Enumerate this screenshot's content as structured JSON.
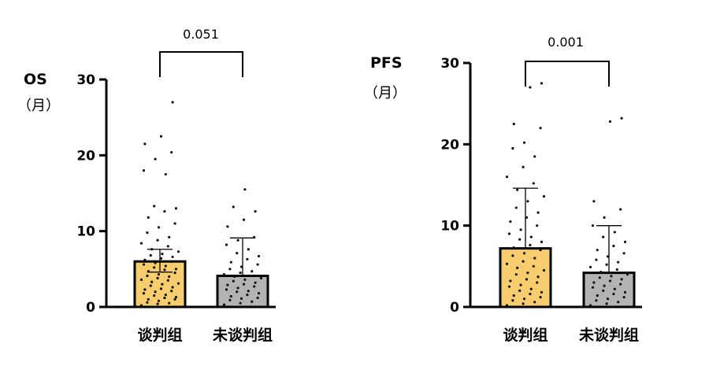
{
  "colors": {
    "group1": "#F8CD6E",
    "group2": "#B3B3B3"
  },
  "chart_data": [
    {
      "type": "bar",
      "title": "",
      "ylabel": "OS",
      "yunit": "（月）",
      "categories": [
        "谈判组",
        "未谈判组"
      ],
      "means": [
        6.0,
        4.1
      ],
      "error_low": [
        4.6,
        4.1
      ],
      "error_high": [
        7.6,
        9.1
      ],
      "ylim": [
        0,
        30
      ],
      "yticks": [
        0,
        10,
        20,
        30
      ],
      "p_value": "0.051",
      "points": [
        [
          0.2,
          0.4,
          0.5,
          0.6,
          0.8,
          1.0,
          1.0,
          1.2,
          1.3,
          1.5,
          1.6,
          1.8,
          2.0,
          2.1,
          2.3,
          2.4,
          2.6,
          2.8,
          3.0,
          3.1,
          3.3,
          3.5,
          3.6,
          3.8,
          4.0,
          4.1,
          4.3,
          4.5,
          4.7,
          4.9,
          5.0,
          5.2,
          5.4,
          5.6,
          5.8,
          6.0,
          6.2,
          6.4,
          6.6,
          6.8,
          7.0,
          7.3,
          7.6,
          8.0,
          8.4,
          8.8,
          9.2,
          9.8,
          10.5,
          11.0,
          11.8,
          12.6,
          13.0,
          13.3,
          17.5,
          18.0,
          19.5,
          20.4,
          21.5,
          22.5,
          27.0
        ],
        [
          0.3,
          0.5,
          0.7,
          0.9,
          1.1,
          1.2,
          1.4,
          1.6,
          1.8,
          2.0,
          2.1,
          2.3,
          2.5,
          2.7,
          2.9,
          3.0,
          3.2,
          3.4,
          3.6,
          3.8,
          4.0,
          4.1,
          4.3,
          4.5,
          4.7,
          5.0,
          5.3,
          5.6,
          5.9,
          6.3,
          6.7,
          7.1,
          7.6,
          8.2,
          8.8,
          9.2,
          10.6,
          11.5,
          12.6,
          13.2,
          15.5
        ]
      ]
    },
    {
      "type": "bar",
      "title": "",
      "ylabel": "PFS",
      "yunit": "（月）",
      "categories": [
        "谈判组",
        "未谈判组"
      ],
      "means": [
        7.2,
        4.2
      ],
      "error_low": [
        7.2,
        4.2
      ],
      "error_high": [
        14.6,
        10.0
      ],
      "ylim": [
        0,
        30
      ],
      "yticks": [
        0,
        10,
        20,
        30
      ],
      "p_value": "0.001",
      "points": [
        [
          0.2,
          0.4,
          0.6,
          0.8,
          1.0,
          1.2,
          1.4,
          1.6,
          1.8,
          2.0,
          2.2,
          2.5,
          2.7,
          3.0,
          3.2,
          3.4,
          3.7,
          4.0,
          4.2,
          4.5,
          4.8,
          5.0,
          5.3,
          5.6,
          6.0,
          6.3,
          6.6,
          7.0,
          7.3,
          7.6,
          8.0,
          8.3,
          8.6,
          9.0,
          9.5,
          10.0,
          10.5,
          11.0,
          11.6,
          12.2,
          13.0,
          13.6,
          14.4,
          15.2,
          16.0,
          17.2,
          18.5,
          19.5,
          20.2,
          22.0,
          22.5,
          27.0,
          27.5
        ],
        [
          0.2,
          0.4,
          0.6,
          0.8,
          1.0,
          1.2,
          1.4,
          1.6,
          1.8,
          2.0,
          2.2,
          2.4,
          2.6,
          2.8,
          3.0,
          3.2,
          3.4,
          3.6,
          3.8,
          4.0,
          4.3,
          4.6,
          4.9,
          5.2,
          5.5,
          5.8,
          6.2,
          6.6,
          7.0,
          7.5,
          8.0,
          8.6,
          9.2,
          10.0,
          11.0,
          12.0,
          13.0,
          22.8,
          23.2
        ]
      ]
    }
  ]
}
